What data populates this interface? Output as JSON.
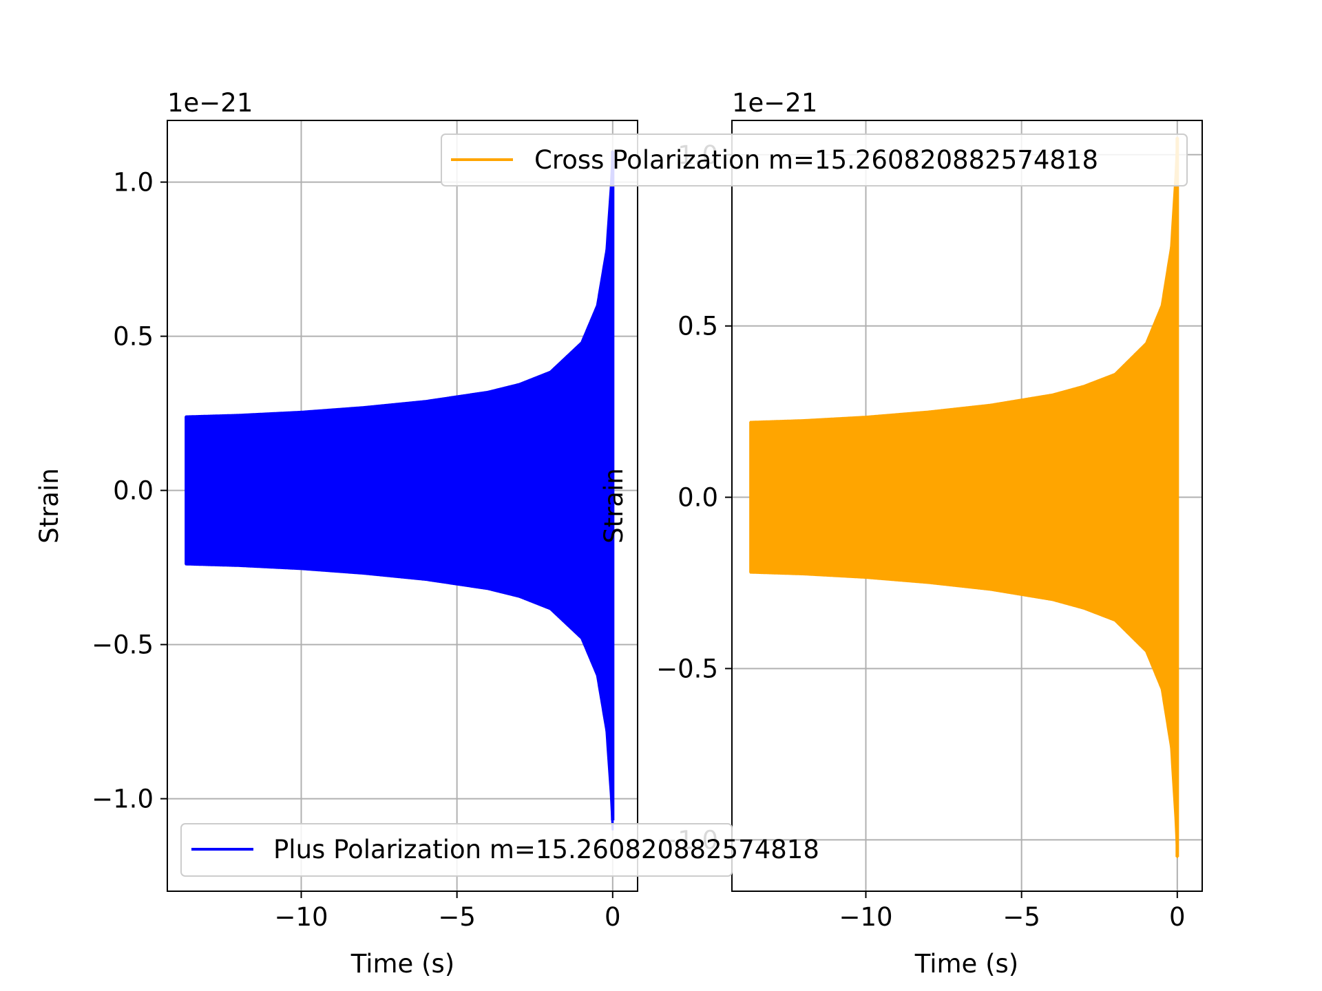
{
  "chart_data": [
    {
      "type": "line",
      "xlabel": "Time (s)",
      "ylabel": "Strain",
      "offset_text": "1e−21",
      "xlim": [
        -14.3,
        0.8
      ],
      "ylim": [
        -1.3,
        1.2
      ],
      "xticks": [
        -10,
        -5,
        0
      ],
      "xtick_labels": [
        "−10",
        "−5",
        "0"
      ],
      "yticks": [
        -1.0,
        -0.5,
        0.0,
        0.5,
        1.0
      ],
      "ytick_labels": [
        "−1.0",
        "−0.5",
        "0.0",
        "0.5",
        "1.0"
      ],
      "grid": true,
      "legend_position": "lower-left",
      "series": [
        {
          "name": "Plus Polarization m=15.260820882574818",
          "color": "#0000ff",
          "t_start": -13.7,
          "t_end": 0.0,
          "envelope_t": [
            -13.7,
            -12,
            -10,
            -8,
            -6,
            -4,
            -3,
            -2,
            -1,
            -0.5,
            -0.2,
            -0.05,
            0.0
          ],
          "envelope_amp": [
            0.24,
            0.245,
            0.255,
            0.27,
            0.29,
            0.32,
            0.345,
            0.385,
            0.48,
            0.6,
            0.78,
            1.0,
            1.1
          ],
          "min_value": -1.07,
          "max_value": 1.1
        }
      ]
    },
    {
      "type": "line",
      "xlabel": "Time (s)",
      "ylabel": "Strain",
      "offset_text": "1e−21",
      "xlim": [
        -14.3,
        0.8
      ],
      "ylim": [
        -1.15,
        1.1
      ],
      "xticks": [
        -10,
        -5,
        0
      ],
      "xtick_labels": [
        "−10",
        "−5",
        "0"
      ],
      "yticks": [
        -1.0,
        -0.5,
        0.0,
        0.5,
        1.0
      ],
      "ytick_labels": [
        "−1.0",
        "−0.5",
        "0.0",
        "0.5",
        "1.0"
      ],
      "grid": true,
      "legend_position": "upper-right",
      "series": [
        {
          "name": "Cross Polarization m=15.260820882574818",
          "color": "#ffa500",
          "t_start": -13.7,
          "t_end": 0.0,
          "envelope_t": [
            -13.7,
            -12,
            -10,
            -8,
            -6,
            -4,
            -3,
            -2,
            -1,
            -0.5,
            -0.2,
            -0.05,
            0.0
          ],
          "envelope_amp": [
            0.22,
            0.225,
            0.235,
            0.25,
            0.27,
            0.3,
            0.325,
            0.36,
            0.45,
            0.56,
            0.73,
            0.95,
            1.05
          ],
          "min_value": -1.05,
          "max_value": 1.05
        }
      ]
    }
  ]
}
